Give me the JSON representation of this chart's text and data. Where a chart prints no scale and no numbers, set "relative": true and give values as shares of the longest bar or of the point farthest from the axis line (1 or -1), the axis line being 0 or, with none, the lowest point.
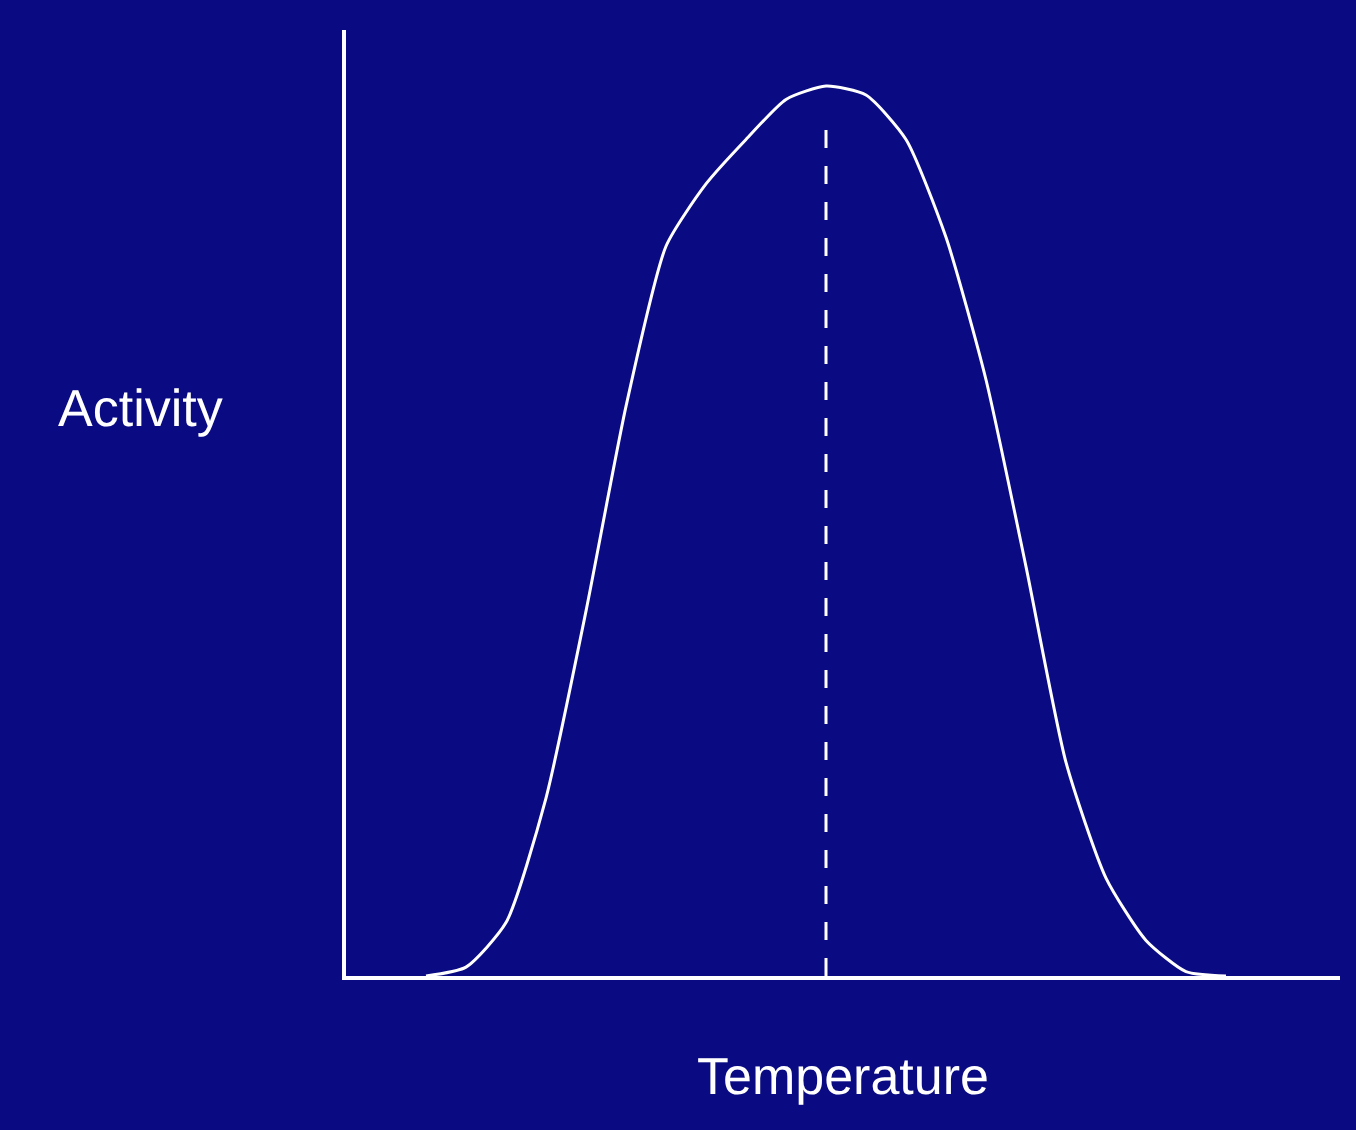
{
  "chart_data": {
    "type": "line",
    "relative": true,
    "xlabel": "Temperature",
    "ylabel": "Activity",
    "categories": [
      null,
      null,
      null,
      null,
      null,
      null,
      null,
      null,
      null,
      null,
      null,
      null,
      null,
      null,
      null,
      null,
      null,
      null,
      null,
      null,
      null,
      null,
      null,
      null
    ],
    "series": [
      {
        "color": "#ffffff",
        "values": [
          null,
          0,
          0.01,
          0.06,
          0.2,
          0.41,
          0.64,
          0.82,
          0.89,
          0.94,
          0.985,
          1,
          0.99,
          0.94,
          0.83,
          0.67,
          0.46,
          0.24,
          0.11,
          0.04,
          0.005,
          0,
          null,
          null
        ]
      }
    ],
    "marker": "none",
    "line_style": "solid",
    "grid": false,
    "legend": false,
    "tick_labels": false
  }
}
